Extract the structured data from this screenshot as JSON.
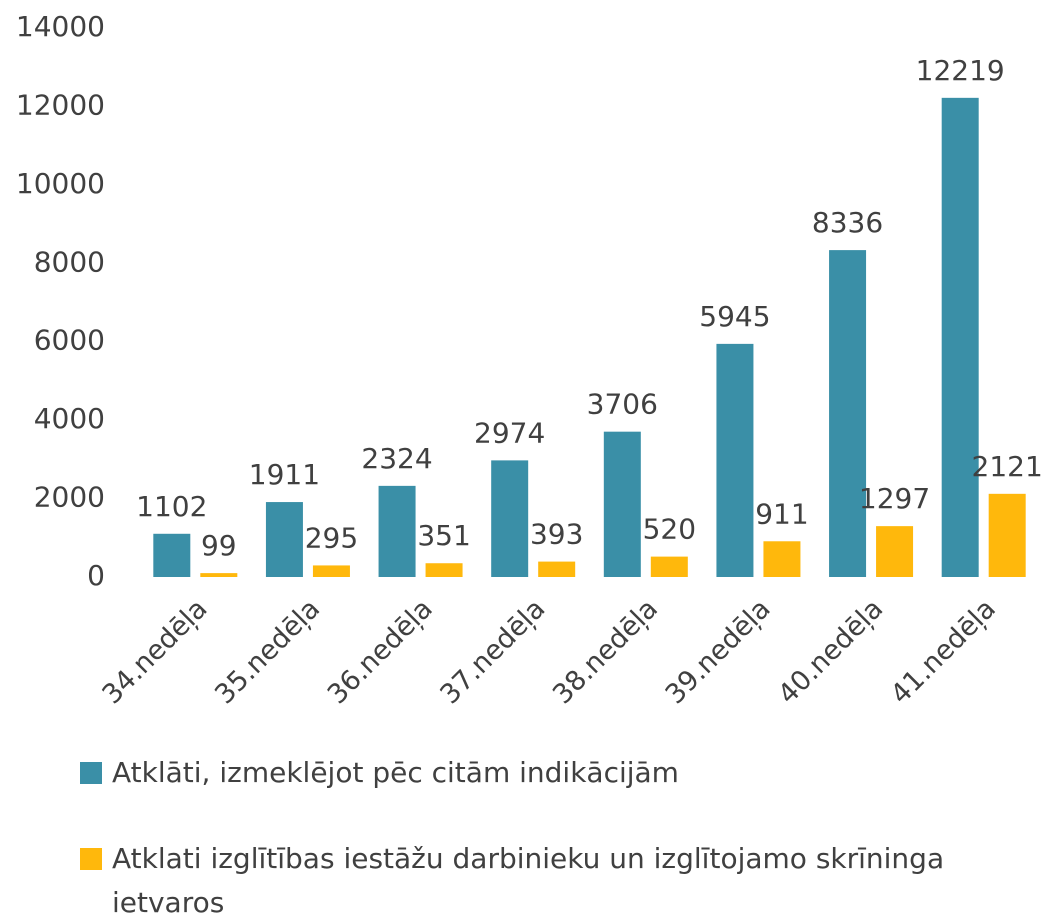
{
  "chart_data": {
    "type": "bar",
    "categories": [
      "34.nedēļa",
      "35.nedēļa",
      "36.nedēļa",
      "37.nedēļa",
      "38.nedēļa",
      "39.nedēļa",
      "40.nedēļa",
      "41.nedēļa"
    ],
    "series": [
      {
        "name": "Atklāti, izmeklējot pēc citām indikācijām",
        "color": "#3a8fa7",
        "values": [
          1102,
          1911,
          2324,
          2974,
          3706,
          5945,
          8336,
          12219
        ]
      },
      {
        "name": "Atklati izglītības iestāžu darbinieku un izglītojamo skrīninga ietvaros",
        "color": "#ffb80c",
        "values": [
          99,
          295,
          351,
          393,
          520,
          911,
          1297,
          2121
        ]
      }
    ],
    "ylim": [
      0,
      14000
    ],
    "yticks": [
      0,
      2000,
      4000,
      6000,
      8000,
      10000,
      12000,
      14000
    ],
    "grid": false
  }
}
